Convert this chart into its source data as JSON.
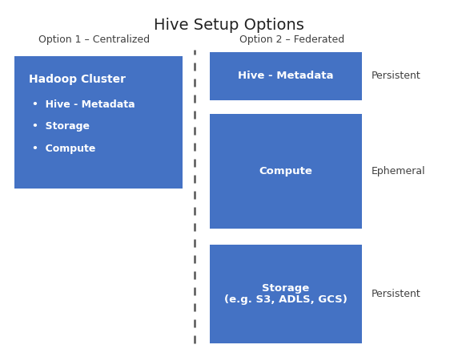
{
  "title": "Hive Setup Options",
  "title_fontsize": 14,
  "title_fontweight": "normal",
  "background_color": "#ffffff",
  "box_color": "#4472C4",
  "text_color": "#ffffff",
  "label_color": "#404040",
  "option1_label": "Option 1 – Centralized",
  "option2_label": "Option 2 – Federated",
  "hadoop_title": "Hadoop Cluster",
  "hadoop_bullets": [
    "Hive - Metadata",
    "Storage",
    "Compute"
  ],
  "box2_label": "Hive - Metadata",
  "box3_label": "Compute",
  "box4_label": "Storage\n(e.g. S3, ADLS, GCS)",
  "persistent1_label": "Persistent",
  "ephemeral_label": "Ephemeral",
  "persistent2_label": "Persistent",
  "divider_color": "#555555"
}
